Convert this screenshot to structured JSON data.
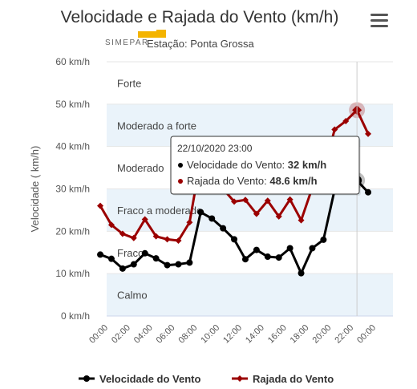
{
  "title": "Velocidade e Rajada do Vento (km/h)",
  "subtitle": "Estação: Ponta Grossa",
  "logo_text": "SIMEPAR",
  "menu_icon": "hamburger-menu-icon",
  "chart_data": {
    "type": "line",
    "ylabel": "Velocidade ( km/h)",
    "ylim": [
      0,
      60
    ],
    "y_ticks": [
      0,
      10,
      20,
      30,
      40,
      50,
      60
    ],
    "y_tick_labels": [
      "0 km/h",
      "10 km/h",
      "20 km/h",
      "30 km/h",
      "40 km/h",
      "50 km/h",
      "60 km/h"
    ],
    "x_tick_labels": [
      "00:00",
      "02:00",
      "04:00",
      "06:00",
      "08:00",
      "10:00",
      "12:00",
      "14:00",
      "16:00",
      "18:00",
      "20:00",
      "22:00",
      "00:00"
    ],
    "x_hours_start": 0,
    "x_hours_end": 24,
    "bands": [
      {
        "label": "Calmo",
        "from": 0,
        "to": 10,
        "color": "#eaf3fa"
      },
      {
        "label": "Fraco",
        "from": 10,
        "to": 20,
        "color": "#ffffff"
      },
      {
        "label": "Fraco a moderado",
        "from": 20,
        "to": 30,
        "color": "#eaf3fa"
      },
      {
        "label": "Moderado",
        "from": 30,
        "to": 40,
        "color": "#ffffff"
      },
      {
        "label": "Moderado a forte",
        "from": 40,
        "to": 50,
        "color": "#eaf3fa"
      },
      {
        "label": "Forte",
        "from": 50,
        "to": 60,
        "color": "#ffffff"
      }
    ],
    "series": [
      {
        "name": "Velocidade do Vento",
        "color": "#000000",
        "marker": "circle",
        "hours": [
          -0.5,
          0.5,
          1.5,
          2.5,
          3.5,
          4.5,
          5.5,
          6.5,
          7.5,
          8.5,
          9.5,
          10.5,
          11.5,
          12.5,
          13.5,
          14.5,
          15.5,
          16.5,
          17.5,
          18.5,
          19.5,
          20.5,
          21.5,
          22.5,
          23.5
        ],
        "values": [
          14.5,
          13.5,
          11.2,
          12.2,
          14.8,
          13.6,
          12,
          12.2,
          12.6,
          24.5,
          23,
          20.7,
          18.1,
          13.4,
          15.6,
          14,
          13.8,
          16,
          10.1,
          16,
          18,
          29.8,
          32.8,
          32,
          29.2
        ]
      },
      {
        "name": "Rajada do Vento",
        "color": "#9b0000",
        "marker": "diamond",
        "hours": [
          -0.5,
          0.5,
          1.5,
          2.5,
          3.5,
          4.5,
          5.5,
          6.5,
          7.5,
          8.5,
          9.5,
          10.5,
          11.5,
          12.5,
          13.5,
          14.5,
          15.5,
          16.5,
          17.5,
          18.5,
          19.5,
          20.5,
          21.5,
          22.5,
          23.5
        ],
        "values": [
          26,
          21.5,
          19.4,
          18.4,
          22.8,
          18.8,
          18.1,
          17.8,
          22.1,
          37,
          30,
          30,
          27,
          27.4,
          24.1,
          27.2,
          23.5,
          27.5,
          22.6,
          30.3,
          34,
          44,
          46,
          48.6,
          43
        ]
      }
    ],
    "highlight_index": 23,
    "tooltip": {
      "date": "22/10/2020 23:00",
      "lines": [
        {
          "label": "Velocidade do Vento:",
          "value": "32 km/h",
          "color": "#000000"
        },
        {
          "label": "Rajada do Vento:",
          "value": "48.6 km/h",
          "color": "#9b0000"
        }
      ]
    },
    "legend_position": "bottom",
    "grid": true
  }
}
